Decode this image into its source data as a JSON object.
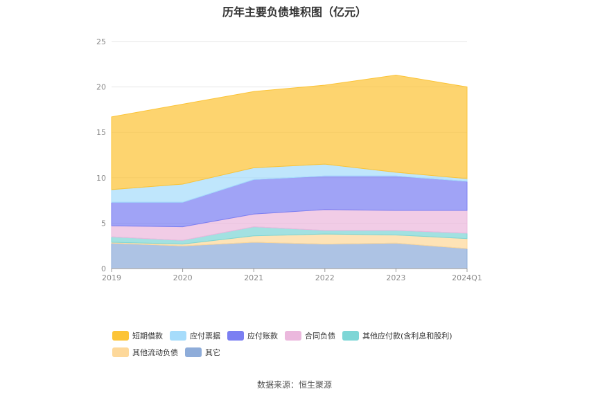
{
  "chart_data": {
    "type": "area",
    "stacked": true,
    "title": "历年主要负债堆积图（亿元）",
    "categories": [
      "2019",
      "2020",
      "2021",
      "2022",
      "2023",
      "2024Q1"
    ],
    "ylim": [
      0,
      25
    ],
    "yticks": [
      0,
      5,
      10,
      15,
      20,
      25
    ],
    "grid": true,
    "legend_position": "bottom",
    "series": [
      {
        "name": "其它",
        "color": "#8eacd9",
        "values": [
          2.8,
          2.5,
          2.9,
          2.7,
          2.8,
          2.2
        ]
      },
      {
        "name": "其他流动负债",
        "color": "#fdd89a",
        "values": [
          0.1,
          0.2,
          0.7,
          1.1,
          0.9,
          1.1
        ]
      },
      {
        "name": "其他应付款(含利息和股利)",
        "color": "#7ed6d6",
        "values": [
          0.6,
          0.4,
          1.0,
          0.4,
          0.5,
          0.6
        ]
      },
      {
        "name": "合同负债",
        "color": "#ebb8dd",
        "values": [
          1.2,
          1.5,
          1.4,
          2.3,
          2.2,
          2.5
        ]
      },
      {
        "name": "应付账款",
        "color": "#7b7ff2",
        "values": [
          2.6,
          2.7,
          3.8,
          3.7,
          3.8,
          3.2
        ]
      },
      {
        "name": "应付票据",
        "color": "#a6dcfb",
        "values": [
          1.4,
          2.0,
          1.3,
          1.3,
          0.4,
          0.3
        ]
      },
      {
        "name": "短期借款",
        "color": "#fcc437",
        "values": [
          8.0,
          8.8,
          8.4,
          8.7,
          10.7,
          10.1
        ]
      }
    ],
    "legend_order": [
      "短期借款",
      "应付票据",
      "应付账款",
      "合同负债",
      "其他应付款(含利息和股利)",
      "其他流动负债",
      "其它"
    ],
    "source": "数据来源：恒生聚源"
  }
}
